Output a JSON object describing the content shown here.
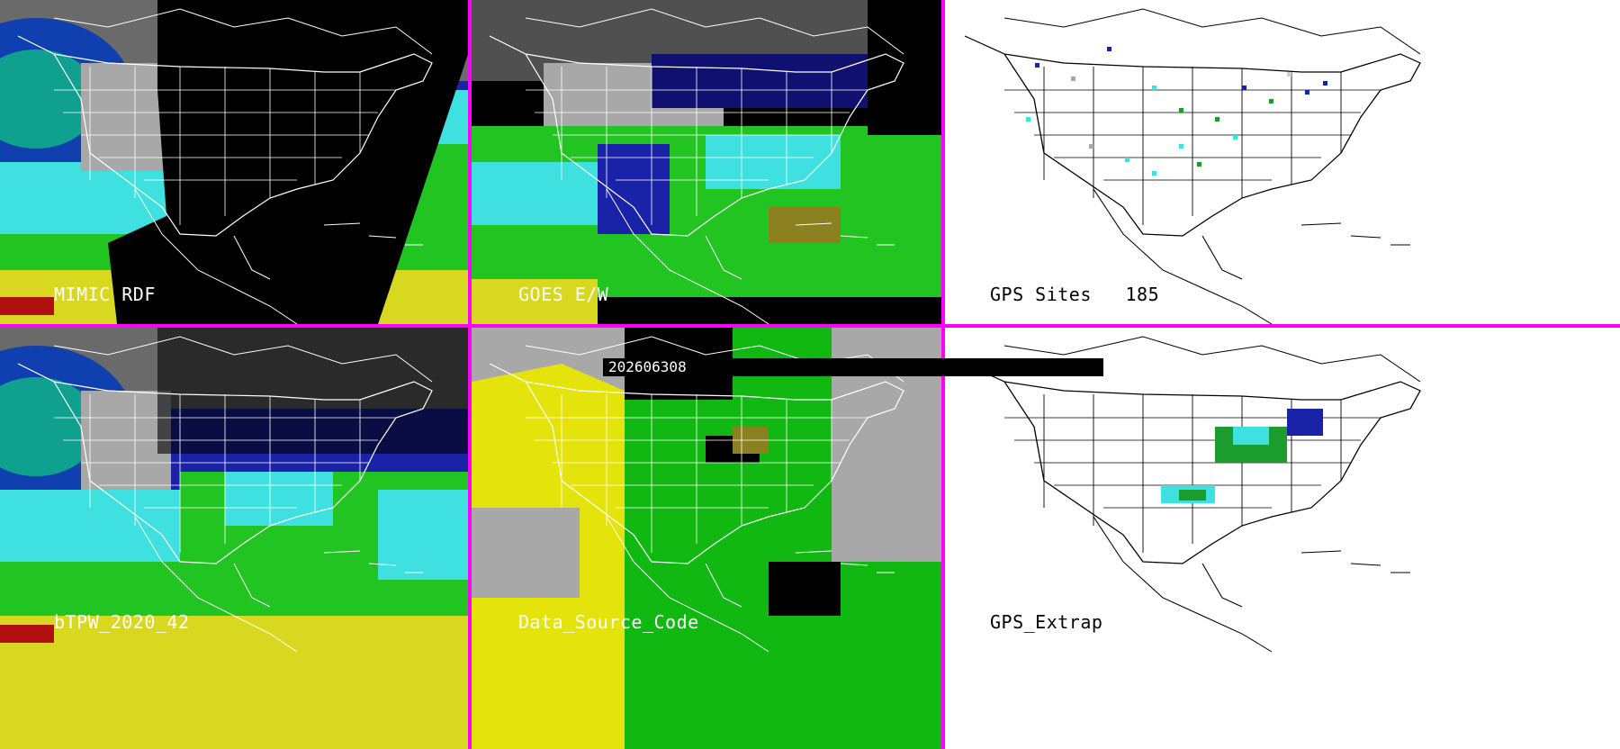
{
  "panels": {
    "mimic": {
      "label": "MIMIC RDF"
    },
    "goes": {
      "label": "GOES E/W"
    },
    "gps_sites": {
      "label": "GPS Sites",
      "count": "185"
    },
    "btpw": {
      "label": "bTPW_2020_42"
    },
    "source": {
      "label": "Data_Source_Code"
    },
    "gps_extrap": {
      "label": "GPS_Extrap"
    }
  },
  "timestamp": "202606308",
  "colors": {
    "divider": "#ff00ff",
    "moist_cyan": "#3ee0e0",
    "moist_blue": "#1a22a8",
    "moist_green": "#22c422",
    "moist_yellow": "#d8d820",
    "dry_gray": "#a8a8a8",
    "source_yellow": "#e4e40c",
    "source_green": "#12b812",
    "gps_green": "#1c9c2c"
  }
}
